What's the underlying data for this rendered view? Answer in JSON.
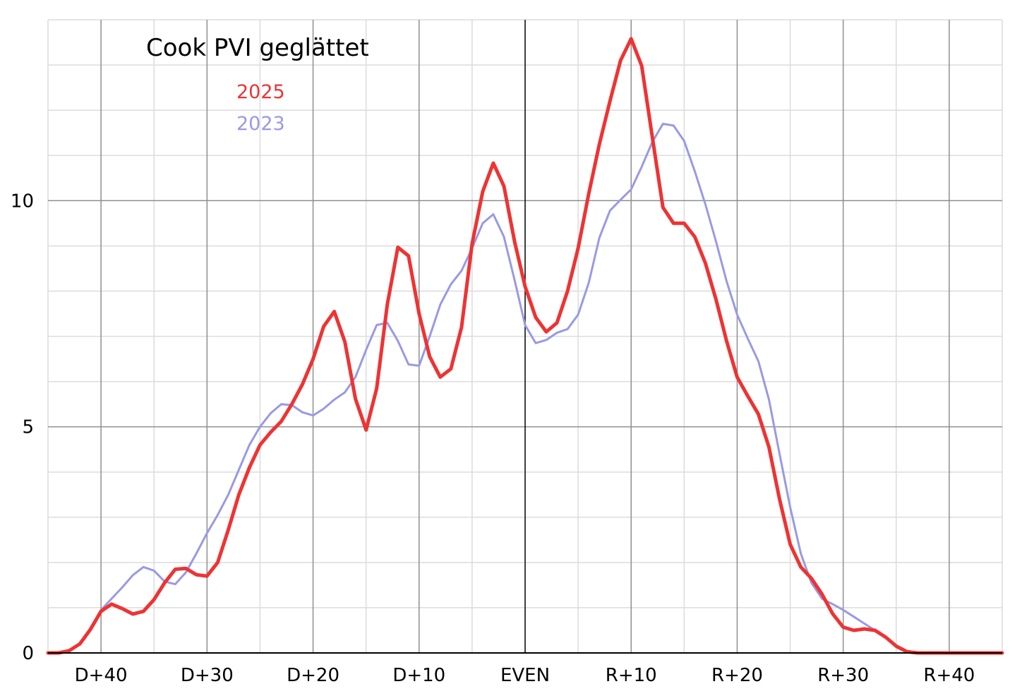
{
  "chart_data": {
    "type": "line",
    "title": "Cook PVI geglättet",
    "xlabel": "",
    "ylabel": "",
    "xlim": [
      -45,
      45
    ],
    "ylim": [
      0,
      14
    ],
    "x_ticks": [
      -40,
      -30,
      -20,
      -10,
      0,
      10,
      20,
      30,
      40
    ],
    "x_tick_labels": [
      "D+40",
      "D+30",
      "D+20",
      "D+10",
      "EVEN",
      "R+10",
      "R+20",
      "R+30",
      "R+40"
    ],
    "y_ticks": [
      0,
      5,
      10
    ],
    "y_tick_labels": [
      "0",
      "5",
      "10"
    ],
    "grid": true,
    "legend_position": "top-left",
    "series": [
      {
        "name": "2023",
        "color": "#9999e6",
        "x": [
          -45,
          -44,
          -43,
          -42,
          -41,
          -40,
          -39,
          -38,
          -37,
          -36,
          -35,
          -34,
          -33,
          -32,
          -31,
          -30,
          -29,
          -28,
          -27,
          -26,
          -25,
          -24,
          -23,
          -22,
          -21,
          -20,
          -19,
          -18,
          -17,
          -16,
          -15,
          -14,
          -13,
          -12,
          -11,
          -10,
          -9,
          -8,
          -7,
          -6,
          -5,
          -4,
          -3,
          -2,
          -1,
          0,
          1,
          2,
          3,
          4,
          5,
          6,
          7,
          8,
          9,
          10,
          11,
          12,
          13,
          14,
          15,
          16,
          17,
          18,
          19,
          20,
          21,
          22,
          23,
          24,
          25,
          26,
          27,
          28,
          29,
          30,
          31,
          32,
          33
        ],
        "values": [
          0,
          0,
          0.05,
          0.2,
          0.55,
          0.95,
          1.2,
          1.45,
          1.72,
          1.9,
          1.82,
          1.58,
          1.52,
          1.78,
          2.2,
          2.65,
          3.05,
          3.5,
          4.05,
          4.6,
          5.0,
          5.3,
          5.5,
          5.48,
          5.32,
          5.25,
          5.4,
          5.6,
          5.76,
          6.1,
          6.7,
          7.25,
          7.3,
          6.9,
          6.38,
          6.35,
          7.0,
          7.7,
          8.15,
          8.45,
          8.95,
          9.5,
          9.7,
          9.2,
          8.25,
          7.25,
          6.85,
          6.92,
          7.08,
          7.16,
          7.48,
          8.18,
          9.18,
          9.78,
          10.02,
          10.25,
          10.75,
          11.3,
          11.7,
          11.66,
          11.32,
          10.65,
          9.92,
          9.1,
          8.22,
          7.48,
          6.95,
          6.45,
          5.6,
          4.4,
          3.22,
          2.2,
          1.55,
          1.2,
          1.08,
          0.95,
          0.8,
          0.65,
          0.5
        ]
      },
      {
        "name": "2025",
        "color": "#ee3333",
        "x": [
          -45,
          -44,
          -43,
          -42,
          -41,
          -40,
          -39,
          -38,
          -37,
          -36,
          -35,
          -34,
          -33,
          -32,
          -31,
          -30,
          -29,
          -28,
          -27,
          -26,
          -25,
          -24,
          -23,
          -22,
          -21,
          -20,
          -19,
          -18,
          -17,
          -16,
          -15,
          -14,
          -13,
          -12,
          -11,
          -10,
          -9,
          -8,
          -7,
          -6,
          -5,
          -4,
          -3,
          -2,
          -1,
          0,
          1,
          2,
          3,
          4,
          5,
          6,
          7,
          8,
          9,
          10,
          11,
          12,
          13,
          14,
          15,
          16,
          17,
          18,
          19,
          20,
          21,
          22,
          23,
          24,
          25,
          26,
          27,
          28,
          29,
          30,
          31,
          32,
          33,
          34,
          35,
          36,
          37,
          38,
          39,
          40,
          41,
          42,
          43,
          44,
          45
        ],
        "values": [
          0,
          0,
          0.05,
          0.2,
          0.52,
          0.92,
          1.08,
          0.98,
          0.86,
          0.92,
          1.18,
          1.55,
          1.85,
          1.87,
          1.73,
          1.7,
          2.0,
          2.72,
          3.5,
          4.1,
          4.6,
          4.88,
          5.12,
          5.5,
          5.94,
          6.5,
          7.22,
          7.55,
          6.88,
          5.62,
          4.93,
          5.85,
          7.7,
          8.97,
          8.78,
          7.5,
          6.55,
          6.1,
          6.28,
          7.2,
          9.05,
          10.2,
          10.83,
          10.32,
          9.1,
          8.1,
          7.42,
          7.1,
          7.3,
          8.0,
          8.95,
          10.15,
          11.25,
          12.2,
          13.1,
          13.58,
          12.98,
          11.4,
          9.85,
          9.5,
          9.5,
          9.2,
          8.62,
          7.82,
          6.9,
          6.1,
          5.68,
          5.28,
          4.55,
          3.4,
          2.4,
          1.9,
          1.65,
          1.3,
          0.87,
          0.57,
          0.5,
          0.53,
          0.5,
          0.35,
          0.15,
          0.03,
          0,
          0,
          0,
          0,
          0,
          0,
          0,
          0,
          0
        ]
      }
    ]
  }
}
